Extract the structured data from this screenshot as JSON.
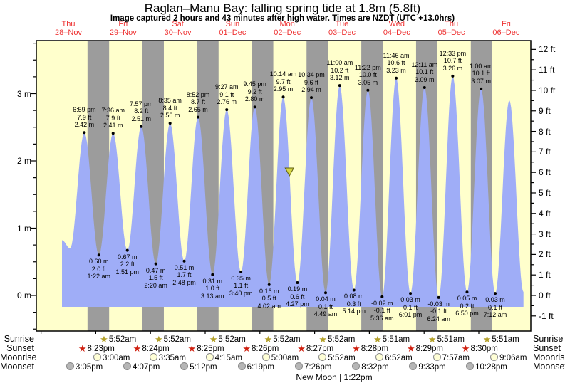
{
  "title": "Raglan–Manu Bay: falling  spring tide at 1.8m (5.8ft)",
  "subtitle": "Image captured 2 hours and 43 minutes after high water. Times are NZDT (UTC +13.0hrs)",
  "colors": {
    "day_bg": "#ffffcc",
    "night_bg": "#9c9c9c",
    "tide_fill": "#9fadf7",
    "day_label": "#ee3333",
    "axis": "#000000",
    "sunrise_star": "#b3a02a",
    "sunset_star": "#cf2010",
    "moonrise_fill": "#ffffd6",
    "moonset_fill": "#b6b6b6",
    "moon_border": "#8a8a8a",
    "marker_fill": "#d6d645",
    "marker_stroke": "#5e5e10"
  },
  "days": [
    {
      "weekday": "Thu",
      "date": "28–Nov"
    },
    {
      "weekday": "Fri",
      "date": "29–Nov"
    },
    {
      "weekday": "Sat",
      "date": "30–Nov"
    },
    {
      "weekday": "Sun",
      "date": "01–Dec"
    },
    {
      "weekday": "Mon",
      "date": "02–Dec"
    },
    {
      "weekday": "Tue",
      "date": "03–Dec"
    },
    {
      "weekday": "Wed",
      "date": "04–Dec"
    },
    {
      "weekday": "Thu",
      "date": "05–Dec"
    },
    {
      "weekday": "Fri",
      "date": "06–Dec"
    }
  ],
  "y_axis_left": {
    "unit": "m",
    "ticks": [
      0,
      1,
      2,
      3
    ]
  },
  "y_axis_right": {
    "unit": "ft",
    "ticks": [
      -1,
      0,
      1,
      2,
      3,
      4,
      5,
      6,
      7,
      8,
      9,
      10,
      11,
      12
    ]
  },
  "chart_data": {
    "type": "area",
    "series_name": "tide height",
    "ylim_m": [
      -0.53,
      3.79
    ],
    "peaks": [
      {
        "day": 0,
        "time": "6:59 pm",
        "ft": "7.9 ft",
        "m": "2.42 m"
      },
      {
        "day": 1,
        "time": "7:36 am",
        "ft": "7.9 ft",
        "m": "2.41 m"
      },
      {
        "day": 1,
        "time": "7:57 pm",
        "ft": "8.2 ft",
        "m": "2.51 m"
      },
      {
        "day": 2,
        "time": "8:35 am",
        "ft": "8.4 ft",
        "m": "2.56 m"
      },
      {
        "day": 2,
        "time": "8:52 pm",
        "ft": "8.7 ft",
        "m": "2.65 m"
      },
      {
        "day": 3,
        "time": "9:27 am",
        "ft": "9.1 ft",
        "m": "2.76 m"
      },
      {
        "day": 3,
        "time": "9:45 pm",
        "ft": "9.2 ft",
        "m": "2.80 m"
      },
      {
        "day": 4,
        "time": "10:14 am",
        "ft": "9.7 ft",
        "m": "2.95 m"
      },
      {
        "day": 4,
        "time": "10:34 pm",
        "ft": "9.6 ft",
        "m": "2.94 m"
      },
      {
        "day": 5,
        "time": "11:00 am",
        "ft": "10.2 ft",
        "m": "3.12 m"
      },
      {
        "day": 5,
        "time": "11:22 pm",
        "ft": "10.0 ft",
        "m": "3.05 m"
      },
      {
        "day": 6,
        "time": "11:46 am",
        "ft": "10.6 ft",
        "m": "3.23 m"
      },
      {
        "day": 7,
        "time": "12:11 am",
        "ft": "10.1 ft",
        "m": "3.09 m"
      },
      {
        "day": 7,
        "time": "12:33 pm",
        "ft": "10.7 ft",
        "m": "3.26 m"
      },
      {
        "day": 8,
        "time": "1:00 am",
        "ft": "10.1 ft",
        "m": "3.07 m"
      }
    ],
    "troughs": [
      {
        "day": 1,
        "m": "0.60 m",
        "ft": "2.0 ft",
        "time": "1:22 am"
      },
      {
        "day": 1,
        "m": "0.67 m",
        "ft": "2.2 ft",
        "time": "1:51 pm"
      },
      {
        "day": 2,
        "m": "0.47 m",
        "ft": "1.5 ft",
        "time": "2:20 am"
      },
      {
        "day": 2,
        "m": "0.51 m",
        "ft": "1.7 ft",
        "time": "2:48 pm"
      },
      {
        "day": 3,
        "m": "0.31 m",
        "ft": "1.0 ft",
        "time": "3:13 am"
      },
      {
        "day": 3,
        "m": "0.35 m",
        "ft": "1.1 ft",
        "time": "3:40 pm"
      },
      {
        "day": 4,
        "m": "0.16 m",
        "ft": "0.5 ft",
        "time": "4:02 am"
      },
      {
        "day": 4,
        "m": "0.19 m",
        "ft": "0.6 ft",
        "time": "4:27 pm"
      },
      {
        "day": 5,
        "m": "0.04 m",
        "ft": "0.1 ft",
        "time": "4:49 am"
      },
      {
        "day": 5,
        "m": "0.08 m",
        "ft": "0.3 ft",
        "time": "5:14 pm"
      },
      {
        "day": 6,
        "m": "-0.02 m",
        "ft": "-0.1 ft",
        "time": "5:36 am"
      },
      {
        "day": 6,
        "m": "0.03 m",
        "ft": "0.1 ft",
        "time": "6:01 pm"
      },
      {
        "day": 7,
        "m": "-0.03 m",
        "ft": "-0.1 ft",
        "time": "6:24 am"
      },
      {
        "day": 7,
        "m": "0.05 m",
        "ft": "0.2 ft",
        "time": "6:50 pm"
      },
      {
        "day": 8,
        "m": "0.03 m",
        "ft": "0.1 ft",
        "time": "7:12 am"
      }
    ],
    "unlabeled_extremes": [
      {
        "day": 0,
        "time": "9:12 am",
        "h": 0.82
      },
      {
        "day": 0,
        "time": "12:45 pm",
        "h": 0.7
      },
      {
        "day": 8,
        "time": "1:24 pm",
        "h": 2.9
      },
      {
        "day": 8,
        "time": "7:36 pm",
        "h": 0.05
      }
    ],
    "capture_marker": {
      "day": 4,
      "time": "12:57 pm"
    }
  },
  "astro": {
    "rows": [
      {
        "label": "Sunrise",
        "type": "sunrise",
        "entries": [
          {
            "day": 1,
            "time": "5:52am"
          },
          {
            "day": 2,
            "time": "5:52am"
          },
          {
            "day": 3,
            "time": "5:52am"
          },
          {
            "day": 4,
            "time": "5:52am"
          },
          {
            "day": 5,
            "time": "5:52am"
          },
          {
            "day": 6,
            "time": "5:51am"
          },
          {
            "day": 7,
            "time": "5:51am"
          },
          {
            "day": 8,
            "time": "5:51am"
          }
        ]
      },
      {
        "label": "Sunset",
        "type": "sunset",
        "entries": [
          {
            "day": 0,
            "time": "8:23pm"
          },
          {
            "day": 1,
            "time": "8:24pm"
          },
          {
            "day": 2,
            "time": "8:25pm"
          },
          {
            "day": 3,
            "time": "8:26pm"
          },
          {
            "day": 4,
            "time": "8:27pm"
          },
          {
            "day": 5,
            "time": "8:28pm"
          },
          {
            "day": 6,
            "time": "8:29pm"
          },
          {
            "day": 7,
            "time": "8:30pm"
          }
        ]
      },
      {
        "label": "Moonrise",
        "type": "moonrise",
        "entries": [
          {
            "day": 1,
            "time": "3:00am"
          },
          {
            "day": 2,
            "time": "3:35am"
          },
          {
            "day": 3,
            "time": "4:15am"
          },
          {
            "day": 4,
            "time": "5:00am"
          },
          {
            "day": 5,
            "time": "5:52am"
          },
          {
            "day": 6,
            "time": "6:52am"
          },
          {
            "day": 7,
            "time": "7:57am"
          },
          {
            "day": 8,
            "time": "9:06am"
          }
        ]
      },
      {
        "label": "Moonset",
        "type": "moonset",
        "entries": [
          {
            "day": 0,
            "time": "3:05pm"
          },
          {
            "day": 1,
            "time": "4:07pm"
          },
          {
            "day": 2,
            "time": "5:12pm"
          },
          {
            "day": 3,
            "time": "6:19pm"
          },
          {
            "day": 4,
            "time": "7:26pm"
          },
          {
            "day": 5,
            "time": "8:32pm"
          },
          {
            "day": 6,
            "time": "9:33pm"
          },
          {
            "day": 7,
            "time": "10:28pm"
          }
        ]
      }
    ],
    "new_moon": "New Moon | 1:22pm"
  }
}
